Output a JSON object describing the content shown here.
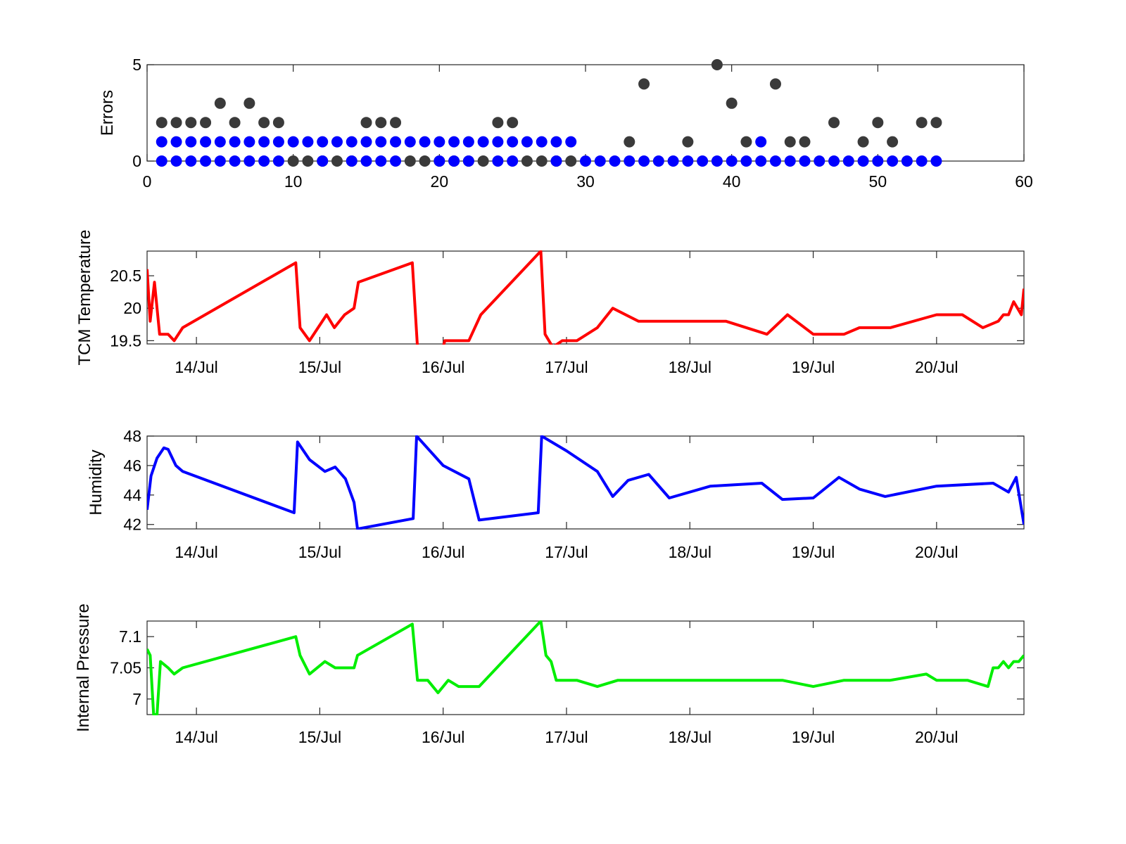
{
  "chart_data": [
    {
      "type": "scatter",
      "ylabel": "Errors",
      "xlim": [
        0,
        60
      ],
      "ylim": [
        0,
        5
      ],
      "xticks": [
        "0",
        "10",
        "20",
        "30",
        "40",
        "50",
        "60"
      ],
      "yticks": [
        "0",
        "5"
      ],
      "grid": false,
      "series": [
        {
          "color": "#3a3a3a",
          "points": [
            [
              1,
              2
            ],
            [
              2,
              2
            ],
            [
              3,
              2
            ],
            [
              4,
              2
            ],
            [
              5,
              3
            ],
            [
              6,
              2
            ],
            [
              7,
              3
            ],
            [
              8,
              2
            ],
            [
              9,
              2
            ],
            [
              10,
              0
            ],
            [
              11,
              0
            ],
            [
              12,
              0
            ],
            [
              13,
              0
            ],
            [
              14,
              0
            ],
            [
              15,
              2
            ],
            [
              16,
              2
            ],
            [
              17,
              2
            ],
            [
              18,
              0
            ],
            [
              19,
              0
            ],
            [
              20,
              0
            ],
            [
              21,
              0
            ],
            [
              22,
              0
            ],
            [
              23,
              0
            ],
            [
              24,
              2
            ],
            [
              25,
              2
            ],
            [
              26,
              0
            ],
            [
              27,
              0
            ],
            [
              28,
              0
            ],
            [
              29,
              0
            ],
            [
              33,
              1
            ],
            [
              34,
              4
            ],
            [
              37,
              1
            ],
            [
              39,
              5
            ],
            [
              40,
              3
            ],
            [
              41,
              1
            ],
            [
              43,
              4
            ],
            [
              44,
              1
            ],
            [
              45,
              1
            ],
            [
              47,
              2
            ],
            [
              49,
              1
            ],
            [
              50,
              2
            ],
            [
              51,
              1
            ],
            [
              53,
              2
            ],
            [
              54,
              2
            ]
          ]
        },
        {
          "color": "#0000ff",
          "points": [
            [
              1,
              1
            ],
            [
              2,
              1
            ],
            [
              3,
              1
            ],
            [
              4,
              1
            ],
            [
              5,
              1
            ],
            [
              6,
              1
            ],
            [
              7,
              1
            ],
            [
              8,
              1
            ],
            [
              9,
              1
            ],
            [
              10,
              1
            ],
            [
              11,
              1
            ],
            [
              12,
              1
            ],
            [
              13,
              1
            ],
            [
              14,
              1
            ],
            [
              15,
              1
            ],
            [
              16,
              1
            ],
            [
              17,
              1
            ],
            [
              18,
              1
            ],
            [
              19,
              1
            ],
            [
              20,
              1
            ],
            [
              21,
              1
            ],
            [
              22,
              1
            ],
            [
              23,
              1
            ],
            [
              24,
              1
            ],
            [
              25,
              1
            ],
            [
              26,
              1
            ],
            [
              27,
              1
            ],
            [
              28,
              1
            ],
            [
              29,
              1
            ],
            [
              42,
              1
            ],
            [
              1,
              0
            ],
            [
              2,
              0
            ],
            [
              3,
              0
            ],
            [
              4,
              0
            ],
            [
              5,
              0
            ],
            [
              6,
              0
            ],
            [
              7,
              0
            ],
            [
              8,
              0
            ],
            [
              9,
              0
            ],
            [
              12,
              0
            ],
            [
              14,
              0
            ],
            [
              15,
              0
            ],
            [
              16,
              0
            ],
            [
              17,
              0
            ],
            [
              20,
              0
            ],
            [
              21,
              0
            ],
            [
              22,
              0
            ],
            [
              24,
              0
            ],
            [
              25,
              0
            ],
            [
              28,
              0
            ],
            [
              30,
              0
            ],
            [
              31,
              0
            ],
            [
              32,
              0
            ],
            [
              33,
              0
            ],
            [
              34,
              0
            ],
            [
              35,
              0
            ],
            [
              36,
              0
            ],
            [
              37,
              0
            ],
            [
              38,
              0
            ],
            [
              39,
              0
            ],
            [
              40,
              0
            ],
            [
              41,
              0
            ],
            [
              42,
              0
            ],
            [
              43,
              0
            ],
            [
              44,
              0
            ],
            [
              45,
              0
            ],
            [
              46,
              0
            ],
            [
              47,
              0
            ],
            [
              48,
              0
            ],
            [
              49,
              0
            ],
            [
              50,
              0
            ],
            [
              51,
              0
            ],
            [
              52,
              0
            ],
            [
              53,
              0
            ],
            [
              54,
              0
            ]
          ]
        }
      ]
    },
    {
      "type": "line",
      "ylabel": "TCM Temperature",
      "xlim": [
        "13/Jul 14:24",
        "20/Jul 17:00"
      ],
      "ylim": [
        19.45,
        20.88
      ],
      "xticks": [
        "14/Jul",
        "15/Jul",
        "16/Jul",
        "17/Jul",
        "18/Jul",
        "19/Jul",
        "20/Jul"
      ],
      "yticks": [
        "19.5",
        "20",
        "20.5"
      ],
      "grid": false,
      "series": [
        {
          "color": "#ff0000",
          "points": [
            [
              "13/Jul 14:24",
              20.6
            ],
            [
              "13/Jul 15:00",
              19.8
            ],
            [
              "13/Jul 15:50",
              20.4
            ],
            [
              "13/Jul 16:50",
              19.6
            ],
            [
              "13/Jul 18:30",
              19.6
            ],
            [
              "13/Jul 19:40",
              19.5
            ],
            [
              "13/Jul 21:20",
              19.7
            ],
            [
              "14/Jul 19:20",
              20.7
            ],
            [
              "14/Jul 20:10",
              19.7
            ],
            [
              "14/Jul 22:00",
              19.5
            ],
            [
              "15/Jul 01:20",
              19.9
            ],
            [
              "15/Jul 02:50",
              19.7
            ],
            [
              "15/Jul 04:50",
              19.9
            ],
            [
              "15/Jul 06:40",
              20.0
            ],
            [
              "15/Jul 07:30",
              20.4
            ],
            [
              "15/Jul 18:00",
              20.7
            ],
            [
              "15/Jul 19:00",
              19.4
            ],
            [
              "16/Jul 00:00",
              19.4
            ],
            [
              "16/Jul 00:20",
              19.5
            ],
            [
              "16/Jul 05:00",
              19.5
            ],
            [
              "16/Jul 07:20",
              19.9
            ],
            [
              "16/Jul 19:00",
              20.88
            ],
            [
              "16/Jul 19:50",
              19.6
            ],
            [
              "16/Jul 21:20",
              19.4
            ],
            [
              "16/Jul 23:10",
              19.5
            ],
            [
              "17/Jul 02:00",
              19.5
            ],
            [
              "17/Jul 06:00",
              19.7
            ],
            [
              "17/Jul 09:00",
              20.0
            ],
            [
              "17/Jul 14:00",
              19.8
            ],
            [
              "18/Jul 07:00",
              19.8
            ],
            [
              "18/Jul 15:00",
              19.6
            ],
            [
              "18/Jul 19:00",
              19.9
            ],
            [
              "19/Jul 00:00",
              19.6
            ],
            [
              "19/Jul 06:00",
              19.6
            ],
            [
              "19/Jul 09:00",
              19.7
            ],
            [
              "19/Jul 15:00",
              19.7
            ],
            [
              "20/Jul 00:00",
              19.9
            ],
            [
              "20/Jul 05:00",
              19.9
            ],
            [
              "20/Jul 09:00",
              19.7
            ],
            [
              "20/Jul 12:00",
              19.8
            ],
            [
              "20/Jul 13:00",
              19.9
            ],
            [
              "20/Jul 14:00",
              19.9
            ],
            [
              "20/Jul 15:00",
              20.1
            ],
            [
              "20/Jul 16:30",
              19.9
            ],
            [
              "20/Jul 17:00",
              20.3
            ]
          ]
        }
      ]
    },
    {
      "type": "line",
      "ylabel": "Humidity",
      "xlim": [
        "13/Jul 14:24",
        "20/Jul 17:00"
      ],
      "ylim": [
        41.7,
        48
      ],
      "xticks": [
        "14/Jul",
        "15/Jul",
        "16/Jul",
        "17/Jul",
        "18/Jul",
        "19/Jul",
        "20/Jul"
      ],
      "yticks": [
        "42",
        "44",
        "46",
        "48"
      ],
      "grid": false,
      "series": [
        {
          "color": "#0000ff",
          "points": [
            [
              "13/Jul 14:24",
              43.0
            ],
            [
              "13/Jul 15:10",
              45.3
            ],
            [
              "13/Jul 16:20",
              46.5
            ],
            [
              "13/Jul 17:40",
              47.2
            ],
            [
              "13/Jul 18:30",
              47.1
            ],
            [
              "13/Jul 20:00",
              46.0
            ],
            [
              "13/Jul 21:20",
              45.6
            ],
            [
              "14/Jul 19:00",
              42.8
            ],
            [
              "14/Jul 19:40",
              47.6
            ],
            [
              "14/Jul 22:00",
              46.4
            ],
            [
              "15/Jul 01:00",
              45.6
            ],
            [
              "15/Jul 03:00",
              45.9
            ],
            [
              "15/Jul 05:00",
              45.1
            ],
            [
              "15/Jul 06:40",
              43.5
            ],
            [
              "15/Jul 07:20",
              41.7
            ],
            [
              "15/Jul 18:10",
              42.4
            ],
            [
              "15/Jul 18:50",
              48.0
            ],
            [
              "16/Jul 00:00",
              46.0
            ],
            [
              "16/Jul 05:00",
              45.1
            ],
            [
              "16/Jul 07:00",
              42.3
            ],
            [
              "16/Jul 18:30",
              42.8
            ],
            [
              "16/Jul 19:10",
              48.0
            ],
            [
              "17/Jul 00:00",
              47.0
            ],
            [
              "17/Jul 06:00",
              45.6
            ],
            [
              "17/Jul 09:00",
              43.9
            ],
            [
              "17/Jul 12:00",
              45.0
            ],
            [
              "17/Jul 16:00",
              45.4
            ],
            [
              "17/Jul 20:00",
              43.8
            ],
            [
              "18/Jul 04:00",
              44.6
            ],
            [
              "18/Jul 09:00",
              44.7
            ],
            [
              "18/Jul 14:00",
              44.8
            ],
            [
              "18/Jul 18:00",
              43.7
            ],
            [
              "19/Jul 00:00",
              43.8
            ],
            [
              "19/Jul 05:00",
              45.2
            ],
            [
              "19/Jul 09:00",
              44.4
            ],
            [
              "19/Jul 14:00",
              43.9
            ],
            [
              "20/Jul 00:00",
              44.6
            ],
            [
              "20/Jul 11:00",
              44.8
            ],
            [
              "20/Jul 12:00",
              44.6
            ],
            [
              "20/Jul 14:00",
              44.2
            ],
            [
              "20/Jul 15:30",
              45.2
            ],
            [
              "20/Jul 17:00",
              42.0
            ]
          ]
        }
      ]
    },
    {
      "type": "line",
      "ylabel": "Internal Pressure",
      "xlim": [
        "13/Jul 14:24",
        "20/Jul 17:00"
      ],
      "ylim": [
        6.975,
        7.125
      ],
      "xticks": [
        "14/Jul",
        "15/Jul",
        "16/Jul",
        "17/Jul",
        "18/Jul",
        "19/Jul",
        "20/Jul"
      ],
      "yticks": [
        "7",
        "7.05",
        "7.1"
      ],
      "grid": false,
      "series": [
        {
          "color": "#00ee00",
          "points": [
            [
              "13/Jul 14:24",
              7.08
            ],
            [
              "13/Jul 15:00",
              7.07
            ],
            [
              "13/Jul 15:40",
              6.975
            ],
            [
              "13/Jul 16:20",
              6.975
            ],
            [
              "13/Jul 17:00",
              7.06
            ],
            [
              "13/Jul 18:30",
              7.05
            ],
            [
              "13/Jul 19:40",
              7.04
            ],
            [
              "13/Jul 21:20",
              7.05
            ],
            [
              "14/Jul 19:20",
              7.1
            ],
            [
              "14/Jul 20:10",
              7.07
            ],
            [
              "14/Jul 22:00",
              7.04
            ],
            [
              "15/Jul 01:00",
              7.06
            ],
            [
              "15/Jul 03:00",
              7.05
            ],
            [
              "15/Jul 06:40",
              7.05
            ],
            [
              "15/Jul 07:20",
              7.07
            ],
            [
              "15/Jul 18:00",
              7.12
            ],
            [
              "15/Jul 19:00",
              7.03
            ],
            [
              "15/Jul 21:00",
              7.03
            ],
            [
              "15/Jul 23:00",
              7.01
            ],
            [
              "16/Jul 01:00",
              7.03
            ],
            [
              "16/Jul 03:00",
              7.02
            ],
            [
              "16/Jul 07:00",
              7.02
            ],
            [
              "16/Jul 19:00",
              7.125
            ],
            [
              "16/Jul 20:00",
              7.07
            ],
            [
              "16/Jul 21:00",
              7.06
            ],
            [
              "16/Jul 22:00",
              7.03
            ],
            [
              "17/Jul 02:00",
              7.03
            ],
            [
              "17/Jul 06:00",
              7.02
            ],
            [
              "17/Jul 10:00",
              7.03
            ],
            [
              "18/Jul 18:00",
              7.03
            ],
            [
              "19/Jul 00:00",
              7.02
            ],
            [
              "19/Jul 06:00",
              7.03
            ],
            [
              "19/Jul 15:00",
              7.03
            ],
            [
              "19/Jul 22:00",
              7.04
            ],
            [
              "20/Jul 00:00",
              7.03
            ],
            [
              "20/Jul 06:00",
              7.03
            ],
            [
              "20/Jul 10:00",
              7.02
            ],
            [
              "20/Jul 11:00",
              7.05
            ],
            [
              "20/Jul 12:00",
              7.05
            ],
            [
              "20/Jul 13:00",
              7.06
            ],
            [
              "20/Jul 14:00",
              7.05
            ],
            [
              "20/Jul 15:00",
              7.06
            ],
            [
              "20/Jul 16:00",
              7.06
            ],
            [
              "20/Jul 17:00",
              7.07
            ]
          ]
        }
      ]
    }
  ]
}
